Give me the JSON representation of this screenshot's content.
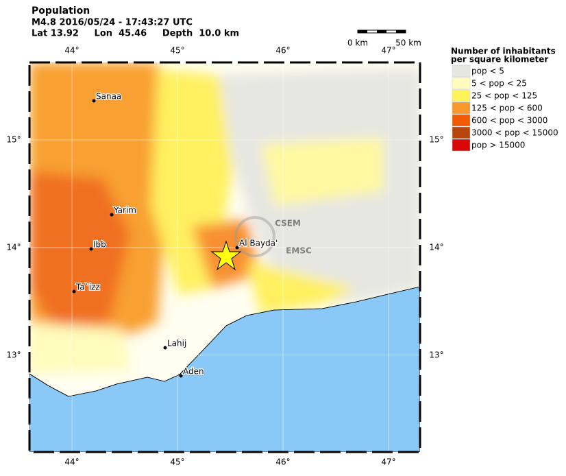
{
  "header": {
    "title": "Population",
    "event": "M4.8  2016/05/24 - 17:43:27 UTC",
    "location": "Lat 13.92     Lon  45.46     Depth  10.0 km"
  },
  "scale_bar": {
    "start": "0 km",
    "end": "50 km"
  },
  "map": {
    "lon_ticks": [
      {
        "value": 44,
        "label": "44°"
      },
      {
        "value": 45,
        "label": "45°"
      },
      {
        "value": 46,
        "label": "46°"
      },
      {
        "value": 47,
        "label": "47°"
      }
    ],
    "lat_ticks": [
      {
        "value": 15,
        "label": "15°"
      },
      {
        "value": 14,
        "label": "14°"
      },
      {
        "value": 13,
        "label": "13°"
      }
    ],
    "cities": [
      "Sanaa",
      "Yarim",
      "Ibb",
      "Ta`izz",
      "Lahij",
      "Aden",
      "Al Bayda'"
    ],
    "watermark": [
      "CSEM",
      "EMSC"
    ]
  },
  "legend": {
    "title": [
      "Number of inhabitants",
      "per square kilometer"
    ],
    "items": [
      {
        "label": "pop < 5",
        "color": "#e6e6e2"
      },
      {
        "label": "5 < pop < 25",
        "color": "#fffcbc"
      },
      {
        "label": "25 < pop < 125",
        "color": "#fff35a"
      },
      {
        "label": "125 < pop < 600",
        "color": "#f8982c"
      },
      {
        "label": "600 < pop < 3000",
        "color": "#f25a00"
      },
      {
        "label": "3000 < pop < 15000",
        "color": "#b8460c"
      },
      {
        "label": "pop > 15000",
        "color": "#d80808"
      }
    ]
  }
}
